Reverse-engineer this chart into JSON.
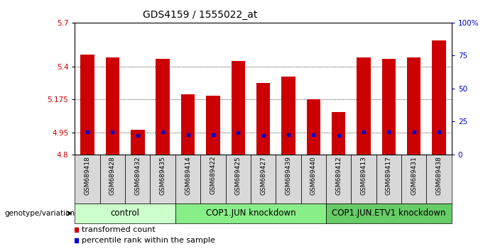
{
  "title": "GDS4159 / 1555022_at",
  "samples": [
    "GSM689418",
    "GSM689428",
    "GSM689432",
    "GSM689435",
    "GSM689414",
    "GSM689422",
    "GSM689425",
    "GSM689427",
    "GSM689439",
    "GSM689440",
    "GSM689412",
    "GSM689413",
    "GSM689417",
    "GSM689431",
    "GSM689438"
  ],
  "bar_values": [
    5.48,
    5.46,
    4.97,
    5.45,
    5.21,
    5.2,
    5.44,
    5.29,
    5.33,
    5.175,
    5.09,
    5.46,
    5.45,
    5.46,
    5.58
  ],
  "percentile_values": [
    4.955,
    4.953,
    4.928,
    4.955,
    4.933,
    4.932,
    4.95,
    4.93,
    4.932,
    4.932,
    4.928,
    4.955,
    4.955,
    4.955,
    4.955
  ],
  "groups": [
    {
      "label": "control",
      "start": 0,
      "end": 4
    },
    {
      "label": "COP1.JUN knockdown",
      "start": 4,
      "end": 10
    },
    {
      "label": "COP1.JUN.ETV1 knockdown",
      "start": 10,
      "end": 15
    }
  ],
  "ylim": [
    4.8,
    5.7
  ],
  "yticks": [
    4.8,
    4.95,
    5.175,
    5.4,
    5.7
  ],
  "ytick_labels": [
    "4.8",
    "4.95",
    "5.175",
    "5.4",
    "5.7"
  ],
  "right_yticks": [
    0,
    25,
    50,
    75,
    100
  ],
  "right_ytick_labels": [
    "0",
    "25",
    "50",
    "75",
    "100%"
  ],
  "grid_lines": [
    4.95,
    5.175,
    5.4
  ],
  "bar_color": "#cc0000",
  "percentile_color": "#0000cc",
  "background_color": "#ffffff",
  "label_color_left": "#cc0000",
  "label_color_right": "#0000cc",
  "sample_cell_color": "#d8d8d8",
  "group_colors": [
    "#ccffcc",
    "#88ee88",
    "#66cc66"
  ],
  "title_fontsize": 10,
  "tick_fontsize": 7.5,
  "sample_fontsize": 6.5,
  "group_fontsize": 8.5,
  "legend_fontsize": 8,
  "genotype_label": "genotype/variation",
  "legend_items": [
    "transformed count",
    "percentile rank within the sample"
  ]
}
